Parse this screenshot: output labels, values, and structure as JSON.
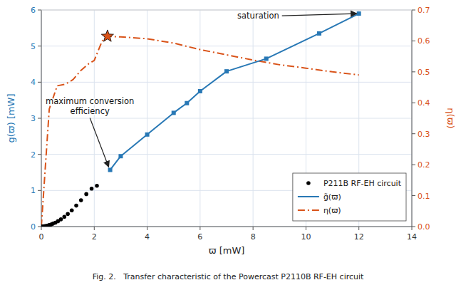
{
  "chart_data": {
    "type": "line",
    "xlabel": "ϖ [mW]",
    "ylabel": "g(ϖ) [mW]",
    "y2label": "η(ϖ)",
    "caption": "Fig. 2.   Transfer characteristic of the Powercast P2110B RF-EH circuit",
    "xlim": [
      0,
      14
    ],
    "ylim": [
      0,
      6
    ],
    "y2lim": [
      0,
      0.7
    ],
    "xticks": [
      0,
      2,
      4,
      6,
      8,
      10,
      12,
      14
    ],
    "yticks": [
      0,
      1,
      2,
      3,
      4,
      5,
      6
    ],
    "y2ticks": [
      {
        "value": 0,
        "label": "0.0"
      },
      0.1,
      0.2,
      0.3,
      0.4,
      0.5,
      0.6,
      0.7
    ],
    "grid": true,
    "legend": "lower right",
    "series": [
      {
        "name": "P211B RF-EH circuit",
        "type": "scatter",
        "marker": "circle",
        "color": "black",
        "x": [
          0.02,
          0.04,
          0.06,
          0.08,
          0.1,
          0.13,
          0.16,
          0.2,
          0.25,
          0.3,
          0.37,
          0.44,
          0.53,
          0.63,
          0.74,
          0.87,
          1.0,
          1.15,
          1.32,
          1.5,
          1.7,
          1.9,
          2.1
        ],
        "values": [
          0.001,
          0.002,
          0.003,
          0.005,
          0.007,
          0.01,
          0.014,
          0.02,
          0.03,
          0.042,
          0.06,
          0.082,
          0.11,
          0.15,
          0.2,
          0.27,
          0.35,
          0.45,
          0.58,
          0.73,
          0.9,
          1.05,
          1.13
        ]
      },
      {
        "name": "g̃(ϖ)",
        "type": "line",
        "marker": "square",
        "color": "#2878b5",
        "x": [
          2.6,
          3.0,
          4.0,
          5.0,
          5.5,
          6.0,
          7.0,
          8.5,
          10.5,
          12.0
        ],
        "values": [
          1.57,
          1.95,
          2.55,
          3.15,
          3.42,
          3.75,
          4.3,
          4.65,
          5.35,
          5.9
        ]
      },
      {
        "name": "η(ϖ)",
        "type": "line",
        "line_style": "dashdot",
        "color": "#d95319",
        "axis": "y2",
        "x": [
          0.0,
          0.3,
          0.6,
          0.9,
          1.2,
          1.5,
          1.8,
          2.0,
          2.3,
          2.5,
          3.0,
          4.0,
          5.0,
          6.0,
          7.0,
          8.0,
          9.0,
          10.0,
          11.0,
          12.0
        ],
        "values": [
          0.0,
          0.38,
          0.455,
          0.46,
          0.475,
          0.505,
          0.527,
          0.537,
          0.6,
          0.615,
          0.613,
          0.607,
          0.593,
          0.572,
          0.555,
          0.538,
          0.523,
          0.512,
          0.5,
          0.49
        ]
      },
      {
        "type": "scatter",
        "marker": "star",
        "color": "#d95319",
        "axis": "y2",
        "x": [
          2.5
        ],
        "values": [
          0.615
        ]
      }
    ],
    "annotations": [
      {
        "text": "saturation",
        "x": 12.0,
        "y": 5.9
      },
      {
        "text": "maximum conversion\nefficiency",
        "x": 2.6,
        "y": 1.57
      }
    ]
  }
}
